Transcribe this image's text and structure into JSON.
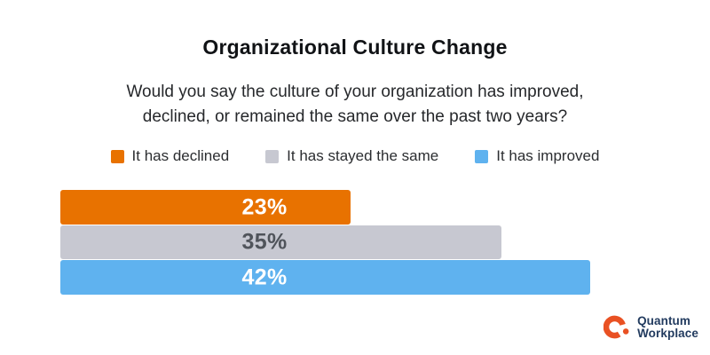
{
  "chart_data": {
    "type": "bar",
    "orientation": "horizontal",
    "title": "Organizational Culture Change",
    "question_lines": [
      "Would you say the culture of your organization has improved,",
      "declined, or remained the same over the past two years?"
    ],
    "categories": [
      "It has declined",
      "It has stayed the same",
      "It has improved"
    ],
    "values": [
      23,
      35,
      42
    ],
    "value_labels": [
      "23%",
      "35%",
      "42%"
    ],
    "bar_colors": [
      "#E87200",
      "#C7C8D1",
      "#5FB2EF"
    ],
    "value_label_colors": [
      "#FFFFFF",
      "#50545B",
      "#FFFFFF"
    ],
    "legend_position": "top",
    "grid": false,
    "axes_shown": false,
    "xlim": [
      0,
      46
    ]
  },
  "footer": {
    "brand_line1": "Quantum",
    "brand_line2": "Workplace",
    "logo_color": "#E95123",
    "text_color": "#223B5F"
  }
}
